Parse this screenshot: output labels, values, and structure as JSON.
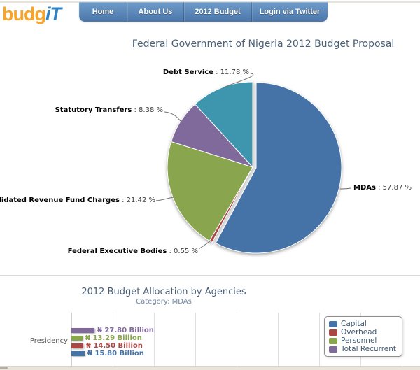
{
  "header": {
    "logo_part1": "budg",
    "logo_part2": "iT",
    "nav": [
      {
        "label": "Home"
      },
      {
        "label": "About Us"
      },
      {
        "label": "2012 Budget"
      },
      {
        "label": "Login via Twitter"
      }
    ]
  },
  "colors": {
    "blue": "#4572A7",
    "red": "#AA4643",
    "green": "#89A54E",
    "purple": "#80699B",
    "teal": "#3D96AE",
    "title_text": "#4a6077",
    "subtitle_text": "#6D869F",
    "nav_top": "#6f9cc9",
    "nav_bottom": "#4a76aa",
    "logo_orange": "#F8A42B",
    "logo_blue": "#2F82C4"
  },
  "chart_data": [
    {
      "type": "pie",
      "title": "Federal Government of Nigeria 2012 Budget Proposal",
      "unit": "percent of total budget",
      "slices": [
        {
          "label": "MDAs",
          "value": 57.87,
          "display": " : 57.87 %",
          "color": "#4572A7",
          "exploded": true
        },
        {
          "label": "Federal Executive Bodies",
          "value": 0.55,
          "display": " : 0.55 %",
          "color": "#AA4643",
          "exploded": false
        },
        {
          "label": "Consolidated Revenue Fund Charges",
          "value": 21.42,
          "display": " : 21.42 %",
          "color": "#89A54E",
          "exploded": false
        },
        {
          "label": "Statutory Transfers",
          "value": 8.38,
          "display": " : 8.38 %",
          "color": "#80699B",
          "exploded": false
        },
        {
          "label": "Debt Service",
          "value": 11.78,
          "display": " : 11.78 %",
          "color": "#3D96AE",
          "exploded": false
        }
      ]
    },
    {
      "type": "bar",
      "title": "2012 Budget Allocation by Agencies",
      "subtitle": "Category: MDAs",
      "categories": [
        "Presidency"
      ],
      "unit": "₦ Billion",
      "xlim": [
        0,
        400
      ],
      "grid_step": 50,
      "grid": true,
      "legend_position": "top-right",
      "series": [
        {
          "name": "Total Recurrent",
          "color": "#80699B",
          "values": [
            27.8
          ],
          "value_label": "₦ 27.80 Billion"
        },
        {
          "name": "Personnel",
          "color": "#89A54E",
          "values": [
            13.29
          ],
          "value_label": "₦ 13.29 Billion"
        },
        {
          "name": "Overhead",
          "color": "#AA4643",
          "values": [
            14.5
          ],
          "value_label": "₦ 14.50 Billion"
        },
        {
          "name": "Capital",
          "color": "#4572A7",
          "values": [
            15.8
          ],
          "value_label": "₦ 15.80 Billion"
        }
      ],
      "legend": [
        {
          "name": "Capital",
          "color": "#4572A7"
        },
        {
          "name": "Overhead",
          "color": "#AA4643"
        },
        {
          "name": "Personnel",
          "color": "#89A54E"
        },
        {
          "name": "Total Recurrent",
          "color": "#80699B"
        }
      ]
    }
  ]
}
